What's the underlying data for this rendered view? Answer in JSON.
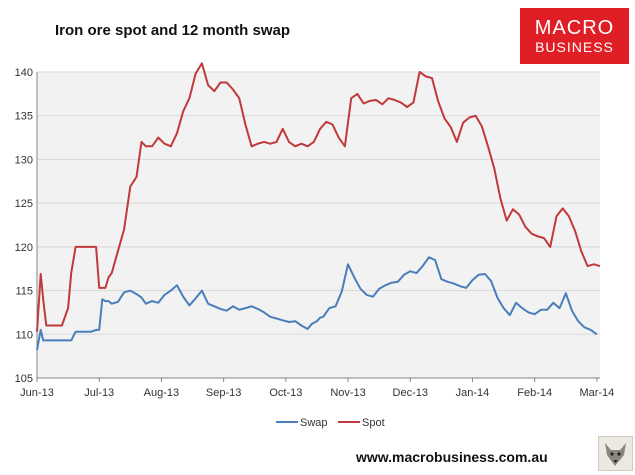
{
  "header": {
    "title": "Iron ore spot and 12 month swap",
    "logo_top": "MACRO",
    "logo_bottom": "BUSINESS"
  },
  "footer": {
    "website": "www.macrobusiness.com.au"
  },
  "colors": {
    "spot": "#c0393b",
    "swap": "#4a7ebb",
    "plot_bg": "#f2f2f2",
    "logo": "#e01e25"
  },
  "chart_data": {
    "type": "line",
    "title": "Iron ore spot and 12 month swap",
    "xlabel": "",
    "ylabel": "",
    "ylim": [
      105,
      140
    ],
    "yticks": [
      105,
      110,
      115,
      120,
      125,
      130,
      135,
      140
    ],
    "xlim": [
      0,
      9.05
    ],
    "xticks": [
      {
        "label": "Jun-13",
        "x": 0
      },
      {
        "label": "Jul-13",
        "x": 1
      },
      {
        "label": "Aug-13",
        "x": 2
      },
      {
        "label": "Sep-13",
        "x": 3
      },
      {
        "label": "Oct-13",
        "x": 4
      },
      {
        "label": "Nov-13",
        "x": 5
      },
      {
        "label": "Dec-13",
        "x": 6
      },
      {
        "label": "Jan-14",
        "x": 7
      },
      {
        "label": "Feb-14",
        "x": 8
      },
      {
        "label": "Mar-14",
        "x": 9
      }
    ],
    "legend_position": "bottom",
    "grid": "horizontal",
    "series": [
      {
        "name": "Swap",
        "color": "#4a7ebb",
        "x": [
          0,
          0.06,
          0.1,
          0.15,
          0.2,
          0.3,
          0.4,
          0.55,
          0.62,
          0.68,
          0.72,
          0.8,
          0.87,
          0.95,
          1.0,
          1.05,
          1.1,
          1.15,
          1.2,
          1.3,
          1.4,
          1.5,
          1.6,
          1.68,
          1.75,
          1.85,
          1.95,
          2.05,
          2.15,
          2.25,
          2.35,
          2.45,
          2.55,
          2.65,
          2.75,
          2.85,
          2.95,
          3.05,
          3.15,
          3.25,
          3.35,
          3.45,
          3.55,
          3.65,
          3.75,
          3.85,
          3.95,
          4.05,
          4.15,
          4.25,
          4.35,
          4.42,
          4.5,
          4.55,
          4.6,
          4.7,
          4.8,
          4.9,
          5.0,
          5.1,
          5.2,
          5.3,
          5.4,
          5.5,
          5.6,
          5.7,
          5.8,
          5.9,
          6.0,
          6.1,
          6.2,
          6.3,
          6.4,
          6.5,
          6.6,
          6.7,
          6.8,
          6.9,
          7.0,
          7.1,
          7.2,
          7.3,
          7.4,
          7.5,
          7.6,
          7.7,
          7.8,
          7.9,
          8.0,
          8.1,
          8.2,
          8.3,
          8.4,
          8.5,
          8.6,
          8.7,
          8.8,
          8.9,
          9.0
        ],
        "values": [
          108.2,
          110.5,
          109.3,
          109.3,
          109.3,
          109.3,
          109.3,
          109.3,
          110.3,
          110.3,
          110.3,
          110.3,
          110.3,
          110.5,
          110.5,
          114.0,
          113.8,
          113.8,
          113.5,
          113.7,
          114.8,
          115.0,
          114.6,
          114.2,
          113.5,
          113.8,
          113.6,
          114.5,
          115.0,
          115.6,
          114.3,
          113.3,
          114.1,
          115.0,
          113.5,
          113.2,
          112.9,
          112.7,
          113.2,
          112.8,
          113.0,
          113.2,
          112.9,
          112.5,
          112.0,
          111.8,
          111.6,
          111.4,
          111.5,
          111.0,
          110.6,
          111.2,
          111.5,
          111.9,
          112.0,
          113.0,
          113.2,
          114.9,
          118.0,
          116.5,
          115.2,
          114.5,
          114.3,
          115.2,
          115.6,
          115.9,
          116.0,
          116.8,
          117.2,
          117.0,
          117.8,
          118.8,
          118.5,
          116.3,
          116.0,
          115.8,
          115.5,
          115.3,
          116.2,
          116.8,
          116.9,
          116.1,
          114.2,
          113.0,
          112.2,
          113.6,
          113.0,
          112.5,
          112.3,
          112.8,
          112.8,
          113.6,
          113.0,
          114.7,
          112.7,
          111.5,
          110.8,
          110.5,
          110.0
        ]
      },
      {
        "name": "Spot",
        "color": "#c0393b",
        "x": [
          0,
          0.06,
          0.1,
          0.15,
          0.2,
          0.3,
          0.4,
          0.5,
          0.55,
          0.62,
          0.68,
          0.72,
          0.8,
          0.87,
          0.95,
          1.0,
          1.05,
          1.1,
          1.15,
          1.2,
          1.3,
          1.4,
          1.5,
          1.6,
          1.68,
          1.75,
          1.85,
          1.95,
          2.05,
          2.15,
          2.25,
          2.35,
          2.45,
          2.55,
          2.65,
          2.75,
          2.85,
          2.95,
          3.05,
          3.15,
          3.25,
          3.35,
          3.45,
          3.55,
          3.65,
          3.75,
          3.85,
          3.95,
          4.05,
          4.15,
          4.25,
          4.35,
          4.45,
          4.55,
          4.65,
          4.75,
          4.85,
          4.95,
          5.05,
          5.15,
          5.25,
          5.35,
          5.45,
          5.55,
          5.65,
          5.75,
          5.85,
          5.95,
          6.05,
          6.15,
          6.25,
          6.35,
          6.45,
          6.55,
          6.65,
          6.75,
          6.85,
          6.95,
          7.05,
          7.15,
          7.25,
          7.35,
          7.45,
          7.55,
          7.65,
          7.75,
          7.85,
          7.95,
          8.05,
          8.15,
          8.25,
          8.35,
          8.45,
          8.55,
          8.65,
          8.75,
          8.85,
          8.95,
          9.05
        ],
        "values": [
          110.3,
          116.9,
          114.0,
          111.0,
          111.0,
          111.0,
          111.0,
          113.0,
          117.0,
          120.0,
          120.0,
          120.0,
          120.0,
          120.0,
          120.0,
          115.3,
          115.3,
          115.3,
          116.5,
          117.0,
          119.5,
          122.0,
          126.9,
          128.0,
          132.0,
          131.5,
          131.5,
          132.5,
          131.8,
          131.5,
          133.0,
          135.5,
          137.0,
          139.8,
          141.0,
          138.5,
          137.8,
          138.8,
          138.8,
          138.0,
          137.0,
          134.0,
          131.5,
          131.8,
          132.0,
          131.8,
          132.0,
          133.5,
          132.0,
          131.5,
          131.8,
          131.5,
          132.0,
          133.5,
          134.3,
          134.0,
          132.5,
          131.5,
          137.0,
          137.5,
          136.4,
          136.7,
          136.8,
          136.3,
          137.0,
          136.8,
          136.5,
          136.0,
          136.5,
          140.0,
          139.5,
          139.3,
          136.6,
          134.7,
          133.7,
          132.0,
          134.2,
          134.8,
          135.0,
          133.8,
          131.5,
          129.0,
          125.5,
          123.0,
          124.3,
          123.7,
          122.3,
          121.5,
          121.2,
          121.0,
          120.0,
          123.5,
          124.4,
          123.5,
          121.8,
          119.5,
          117.8,
          118.0,
          117.8
        ]
      }
    ]
  }
}
